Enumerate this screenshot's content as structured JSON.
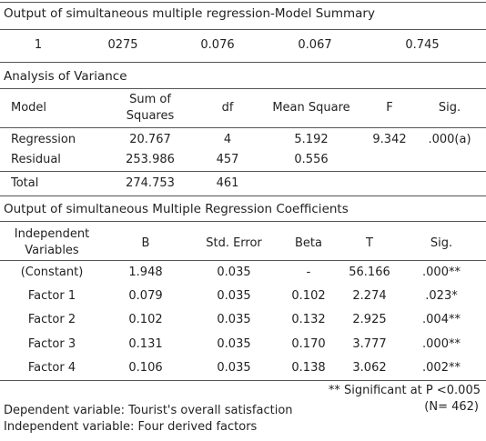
{
  "summary": {
    "title": "Output of simultaneous multiple regression-Model Summary",
    "row": [
      "1",
      "0275",
      "0.076",
      "0.067",
      "0.745"
    ]
  },
  "anova": {
    "title": "Analysis of Variance",
    "headers": {
      "model": "Model",
      "ss_line1": "Sum of",
      "ss_line2": "Squares",
      "df": "df",
      "ms": "Mean Square",
      "f": "F",
      "sig": "Sig."
    },
    "rows": [
      {
        "model": "Regression",
        "ss": "20.767",
        "df": "4",
        "ms": "5.192",
        "f": "9.342",
        "sig": ".000(a)"
      },
      {
        "model": "Residual",
        "ss": "253.986",
        "df": "457",
        "ms": "0.556",
        "f": "",
        "sig": ""
      },
      {
        "model": "Total",
        "ss": "274.753",
        "df": "461",
        "ms": "",
        "f": "",
        "sig": ""
      }
    ]
  },
  "coefficients": {
    "title": "Output of simultaneous Multiple Regression Coefficients",
    "headers": {
      "iv_line1": "Independent",
      "iv_line2": "Variables",
      "b": "B",
      "se": "Std. Error",
      "beta": "Beta",
      "t": "T",
      "sig": "Sig."
    },
    "rows": [
      {
        "var": "(Constant)",
        "b": "1.948",
        "se": "0.035",
        "beta": "-",
        "t": "56.166",
        "sig": ".000**"
      },
      {
        "var": "Factor 1",
        "b": "0.079",
        "se": "0.035",
        "beta": "0.102",
        "t": "2.274",
        "sig": ".023*"
      },
      {
        "var": "Factor 2",
        "b": "0.102",
        "se": "0.035",
        "beta": "0.132",
        "t": "2.925",
        "sig": ".004**"
      },
      {
        "var": "Factor 3",
        "b": "0.131",
        "se": "0.035",
        "beta": "0.170",
        "t": "3.777",
        "sig": ".000**"
      },
      {
        "var": "Factor 4",
        "b": "0.106",
        "se": "0.035",
        "beta": "0.138",
        "t": "3.062",
        "sig": ".002**"
      }
    ]
  },
  "notes": {
    "significance": "** Significant at  P <0.005",
    "n": "(N= 462)",
    "dependent": "Dependent variable:  Tourist's overall satisfaction",
    "independent": "Independent variable:  Four derived factors"
  }
}
